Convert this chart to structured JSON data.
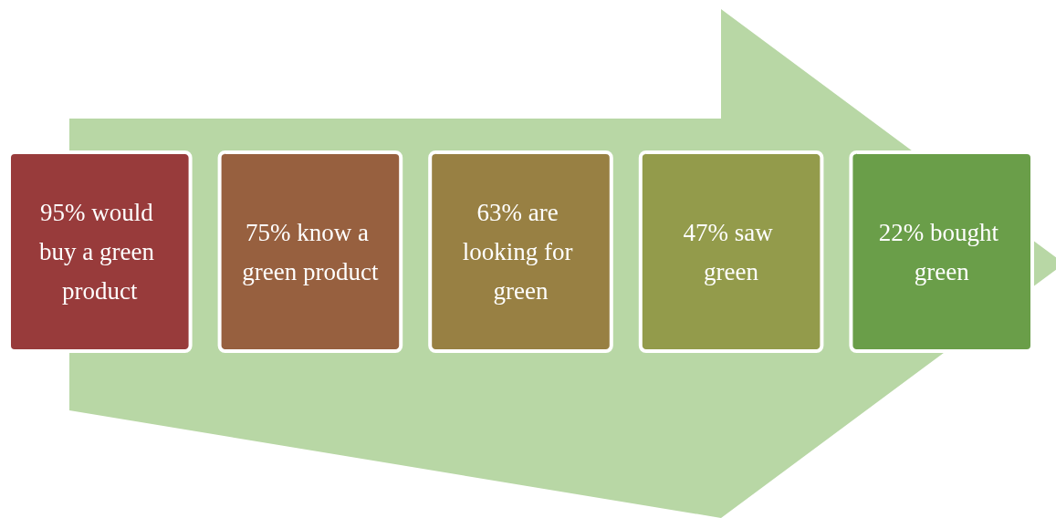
{
  "chart_data": {
    "type": "other",
    "categories": [
      "% would buy a green product",
      "% know a green product",
      "% are looking for green",
      "% saw green",
      "% bought green"
    ],
    "values": [
      95,
      75,
      63,
      47,
      22
    ],
    "data_labels": true,
    "colors": [
      "#983b3b",
      "#97603f",
      "#988043",
      "#939b4b",
      "#6a9e49"
    ]
  }
}
